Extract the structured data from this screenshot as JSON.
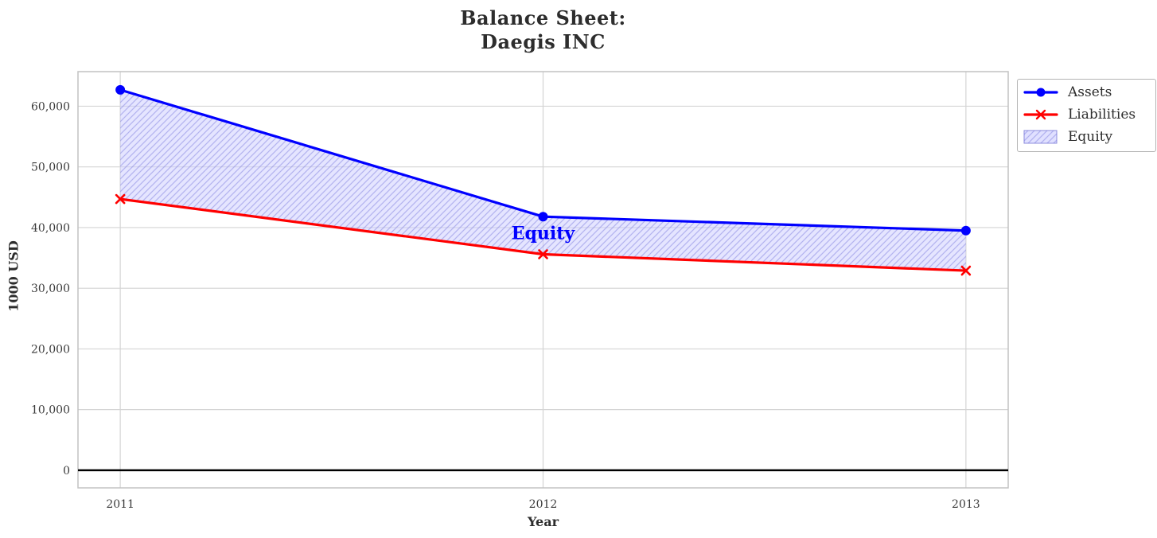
{
  "page": {
    "title_lines": [
      "Balance Sheet:",
      "Daegis INC"
    ]
  },
  "chart_data": {
    "type": "line",
    "title": "Balance Sheet:\nDaegis INC",
    "xlabel": "Year",
    "ylabel": "1000 USD",
    "x": [
      2011,
      2012,
      2013
    ],
    "xtick_labels": [
      "2011",
      "2012",
      "2013"
    ],
    "series": [
      {
        "name": "Assets",
        "color": "#0000ff",
        "marker": "circle",
        "values": [
          62700,
          41800,
          39500
        ]
      },
      {
        "name": "Liabilities",
        "color": "#ff0000",
        "marker": "x",
        "values": [
          44700,
          35600,
          32900
        ]
      }
    ],
    "fill_between": {
      "name": "Equity",
      "upper": "Assets",
      "lower": "Liabilities",
      "facecolor": "#ccccff",
      "hatch": "//",
      "hatch_color": "#7777dd",
      "edge_color": "#8c8cdc"
    },
    "annotation": {
      "text": "Equity",
      "x": 2012,
      "y": 39000,
      "color": "#0000ff"
    },
    "yticks": [
      0,
      10000,
      20000,
      30000,
      40000,
      50000,
      60000
    ],
    "ytick_labels": [
      "0",
      "10,000",
      "20,000",
      "30,000",
      "40,000",
      "50,000",
      "60,000"
    ],
    "xlim": [
      2010.9,
      2013.1
    ],
    "ylim": [
      -2900,
      65700
    ],
    "grid": true,
    "grid_color": "#d4d4d4",
    "spine_color": "#c2c2c2",
    "zero_line": true,
    "zero_line_color": "#000000",
    "legend": {
      "position": "upper right",
      "entries": [
        "Assets",
        "Liabilities",
        "Equity"
      ]
    }
  }
}
